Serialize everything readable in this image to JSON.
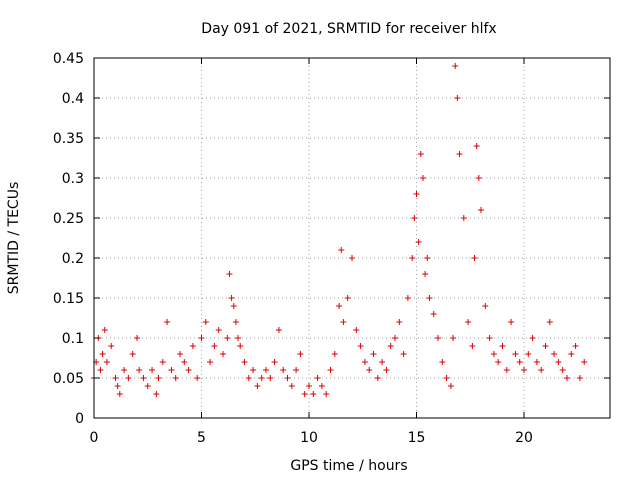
{
  "chart_data": {
    "type": "scatter",
    "title": "Day 091 of 2021, SRMTID for receiver hlfx",
    "xlabel": "GPS time / hours",
    "ylabel": "SRMTID / TECUs",
    "xlim": [
      0,
      24
    ],
    "ylim": [
      0,
      0.45
    ],
    "xticks": [
      0,
      5,
      10,
      15,
      20
    ],
    "xtick_labels": [
      "0",
      "5",
      "10",
      "15",
      "20"
    ],
    "yticks": [
      0,
      0.05,
      0.1,
      0.15,
      0.2,
      0.25,
      0.3,
      0.35,
      0.4,
      0.45
    ],
    "ytick_labels": [
      "0",
      "0.05",
      "0.1",
      "0.15",
      "0.2",
      "0.25",
      "0.3",
      "0.35",
      "0.4",
      "0.45"
    ],
    "grid": true,
    "marker": "plus",
    "color": "#e00000",
    "series": [
      {
        "name": "SRMTID",
        "x": [
          0.0,
          0.1,
          0.2,
          0.3,
          0.4,
          0.5,
          0.6,
          0.8,
          1.0,
          1.1,
          1.2,
          1.4,
          1.6,
          1.8,
          2.0,
          2.1,
          2.3,
          2.5,
          2.7,
          2.9,
          3.0,
          3.2,
          3.4,
          3.6,
          3.8,
          4.0,
          4.2,
          4.4,
          4.6,
          4.8,
          5.0,
          5.2,
          5.4,
          5.6,
          5.8,
          6.0,
          6.2,
          6.3,
          6.4,
          6.5,
          6.6,
          6.7,
          6.8,
          7.0,
          7.2,
          7.4,
          7.6,
          7.8,
          8.0,
          8.2,
          8.4,
          8.6,
          8.8,
          9.0,
          9.2,
          9.4,
          9.6,
          9.8,
          10.0,
          10.2,
          10.4,
          10.6,
          10.8,
          11.0,
          11.2,
          11.4,
          11.5,
          11.6,
          11.8,
          12.0,
          12.2,
          12.4,
          12.6,
          12.8,
          13.0,
          13.2,
          13.4,
          13.6,
          13.8,
          14.0,
          14.2,
          14.4,
          14.6,
          14.8,
          14.9,
          15.0,
          15.1,
          15.2,
          15.3,
          15.4,
          15.5,
          15.6,
          15.8,
          16.0,
          16.2,
          16.4,
          16.6,
          16.7,
          16.8,
          16.9,
          17.0,
          17.2,
          17.4,
          17.6,
          17.7,
          17.8,
          17.9,
          18.0,
          18.2,
          18.4,
          18.6,
          18.8,
          19.0,
          19.2,
          19.4,
          19.6,
          19.8,
          20.0,
          20.2,
          20.4,
          20.6,
          20.8,
          21.0,
          21.2,
          21.4,
          21.6,
          21.8,
          22.0,
          22.2,
          22.4,
          22.6,
          22.8
        ],
        "y": [
          0.05,
          0.07,
          0.1,
          0.06,
          0.08,
          0.11,
          0.07,
          0.09,
          0.05,
          0.04,
          0.03,
          0.06,
          0.05,
          0.08,
          0.1,
          0.06,
          0.05,
          0.04,
          0.06,
          0.03,
          0.05,
          0.07,
          0.12,
          0.06,
          0.05,
          0.08,
          0.07,
          0.06,
          0.09,
          0.05,
          0.1,
          0.12,
          0.07,
          0.09,
          0.11,
          0.08,
          0.1,
          0.18,
          0.15,
          0.14,
          0.12,
          0.1,
          0.09,
          0.07,
          0.05,
          0.06,
          0.04,
          0.05,
          0.06,
          0.05,
          0.07,
          0.11,
          0.06,
          0.05,
          0.04,
          0.06,
          0.08,
          0.03,
          0.04,
          0.03,
          0.05,
          0.04,
          0.03,
          0.06,
          0.08,
          0.14,
          0.21,
          0.12,
          0.15,
          0.2,
          0.11,
          0.09,
          0.07,
          0.06,
          0.08,
          0.05,
          0.07,
          0.06,
          0.09,
          0.1,
          0.12,
          0.08,
          0.15,
          0.2,
          0.25,
          0.28,
          0.22,
          0.33,
          0.3,
          0.18,
          0.2,
          0.15,
          0.13,
          0.1,
          0.07,
          0.05,
          0.04,
          0.1,
          0.44,
          0.4,
          0.33,
          0.25,
          0.12,
          0.09,
          0.2,
          0.34,
          0.3,
          0.26,
          0.14,
          0.1,
          0.08,
          0.07,
          0.09,
          0.06,
          0.12,
          0.08,
          0.07,
          0.06,
          0.08,
          0.1,
          0.07,
          0.06,
          0.09,
          0.12,
          0.08,
          0.07,
          0.06,
          0.05,
          0.08,
          0.09,
          0.05,
          0.07
        ]
      }
    ]
  }
}
